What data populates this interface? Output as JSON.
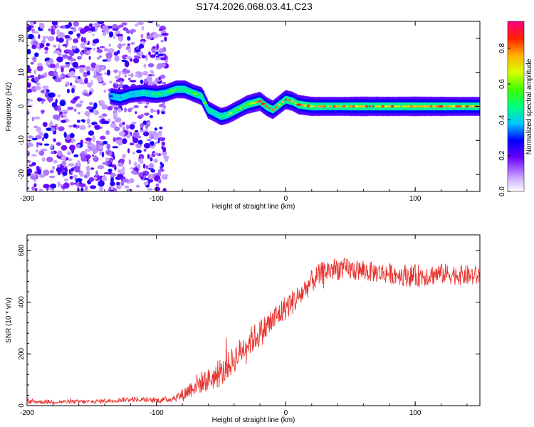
{
  "title": "S174.2026.068.03.41.C23",
  "chart_data": [
    {
      "type": "heatmap",
      "name": "spectrogram",
      "xlabel": "Height of straight line (km)",
      "ylabel": "Frequency (Hz)",
      "xlim": [
        -200,
        150
      ],
      "ylim": [
        -25,
        25
      ],
      "xticks": [
        "-200",
        "-100",
        "0",
        "100"
      ],
      "xtick_values": [
        -200,
        -100,
        0,
        100
      ],
      "yticks": [
        "20",
        "10",
        "0",
        "-10",
        "-20"
      ],
      "ytick_values": [
        20,
        10,
        0,
        -10,
        -20
      ],
      "noise_region_x": [
        -200,
        -92
      ],
      "ridge": {
        "description": "dominant spectral line frequency (Hz) vs height (km)",
        "x": [
          -135,
          -128,
          -120,
          -110,
          -100,
          -92,
          -85,
          -78,
          -72,
          -65,
          -60,
          -55,
          -50,
          -45,
          -40,
          -35,
          -30,
          -25,
          -20,
          -15,
          -10,
          -5,
          0,
          5,
          10,
          20,
          40,
          60,
          80,
          100,
          120,
          150
        ],
        "y": [
          3,
          2.5,
          3.5,
          4,
          3.5,
          4,
          5,
          5,
          4,
          3,
          -1,
          -2,
          -3,
          -2.5,
          -1.5,
          -0.5,
          0.5,
          1,
          1.5,
          0,
          -1,
          0.5,
          2,
          1.5,
          0.5,
          0,
          0,
          0,
          0,
          0,
          0,
          0
        ],
        "peak_amplitude": [
          0.4,
          0.5,
          0.45,
          0.5,
          0.55,
          0.6,
          0.65,
          0.7,
          0.6,
          0.7,
          0.6,
          0.55,
          0.6,
          0.65,
          0.75,
          0.7,
          0.8,
          0.85,
          0.9,
          0.85,
          0.8,
          0.85,
          0.9,
          0.9,
          0.95,
          0.9,
          0.85,
          0.95,
          0.9,
          0.95,
          0.9,
          0.85
        ]
      },
      "colorbar": {
        "label": "Normalized spectral amplitude",
        "range": [
          0,
          0.95
        ],
        "ticks": [
          "0.0",
          "0.2",
          "0.4",
          "0.6",
          "0.8"
        ],
        "tick_values": [
          0,
          0.2,
          0.4,
          0.6,
          0.8
        ]
      }
    },
    {
      "type": "line",
      "name": "snr",
      "xlabel": "Height of straight line (km)",
      "ylabel": "SNR (10 * v/v)",
      "xlim": [
        -200,
        150
      ],
      "ylim": [
        0,
        660
      ],
      "xticks": [
        "-200",
        "-100",
        "0",
        "100"
      ],
      "xtick_values": [
        -200,
        -100,
        0,
        100
      ],
      "yticks": [
        "600",
        "400",
        "200",
        "0"
      ],
      "ytick_values": [
        600,
        400,
        200,
        0
      ],
      "color": "#e8332f",
      "envelope": {
        "description": "approximate mean SNR trend vs height (km); trace shows strong noise about this trend",
        "x": [
          -200,
          -150,
          -120,
          -100,
          -90,
          -80,
          -70,
          -60,
          -50,
          -40,
          -30,
          -20,
          -10,
          0,
          10,
          20,
          30,
          40,
          60,
          80,
          100,
          120,
          150
        ],
        "y": [
          15,
          15,
          25,
          20,
          25,
          40,
          80,
          100,
          120,
          180,
          240,
          280,
          330,
          380,
          420,
          480,
          520,
          530,
          520,
          510,
          500,
          510,
          500
        ],
        "noise": [
          8,
          8,
          10,
          10,
          12,
          25,
          40,
          45,
          50,
          55,
          55,
          55,
          55,
          50,
          50,
          45,
          45,
          45,
          40,
          40,
          45,
          40,
          40
        ]
      }
    }
  ]
}
